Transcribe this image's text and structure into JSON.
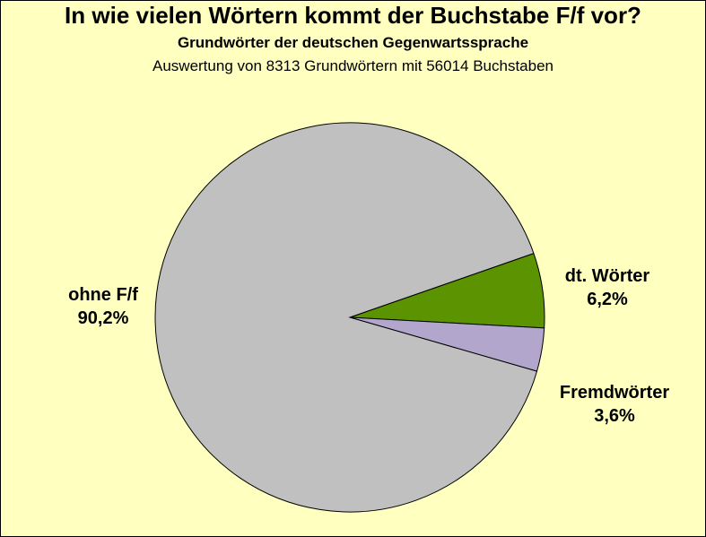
{
  "chart_data": {
    "type": "pie",
    "title": "In wie vielen Wörtern kommt der Buchstabe F/f vor?",
    "subtitle": "Grundwörter der deutschen Gegenwartssprache",
    "caption": "Auswertung von 8313 Grundwörtern mit 56014 Buchstaben",
    "slices": [
      {
        "name": "dt. Wörter",
        "value": 6.2,
        "label": "6,2%",
        "color": "#5B9400"
      },
      {
        "name": "Fremdwörter",
        "value": 3.6,
        "label": "3,6%",
        "color": "#B3A6CC"
      },
      {
        "name": "ohne F/f",
        "value": 90.2,
        "label": "90,2%",
        "color": "#C0C0C0"
      }
    ]
  },
  "colors": {
    "background": "#FFFFC0",
    "border": "#000000"
  }
}
